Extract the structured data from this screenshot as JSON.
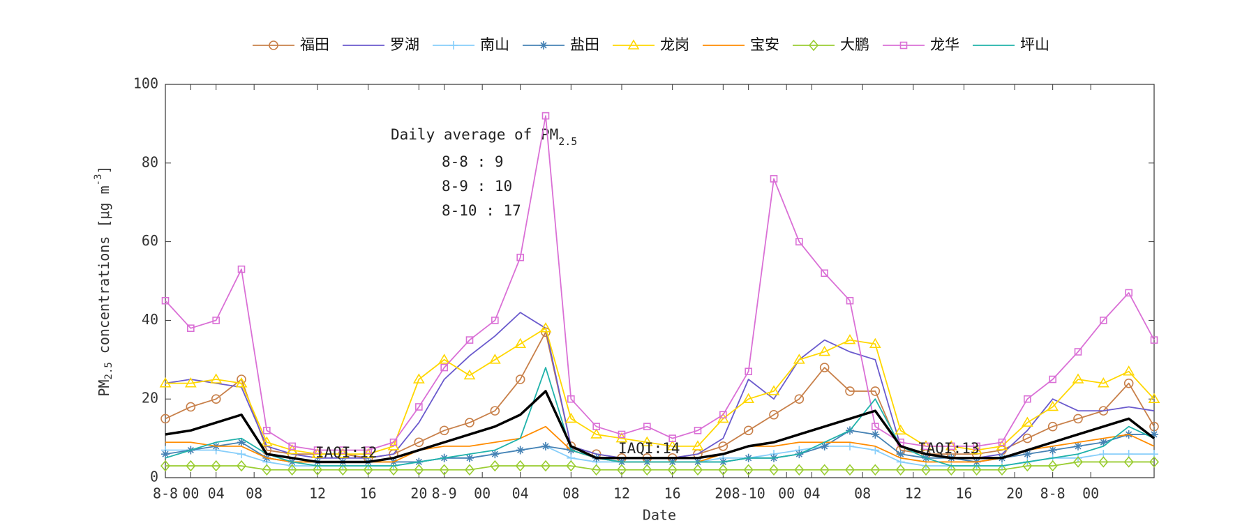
{
  "chart_data": {
    "type": "line",
    "xlabel": "Date",
    "ylabel": [
      "PM",
      "2.5",
      " concentrations [μg m",
      "-3",
      "]"
    ],
    "annotation": {
      "title": [
        "Daily average of PM",
        "2.5"
      ],
      "lines": [
        "8-8 : 9",
        "8-9 : 10",
        "8-10 : 17"
      ]
    },
    "iaqi": [
      "IAQI:12",
      "IAQI:14",
      "IAQI:13"
    ],
    "x": [
      0,
      2,
      4,
      6,
      8,
      10,
      12,
      14,
      16,
      18,
      20,
      22,
      24,
      26,
      28,
      30,
      32,
      34,
      36,
      38,
      40,
      42,
      44,
      46,
      48,
      50,
      52,
      54,
      56,
      58,
      60,
      62,
      64,
      66,
      68,
      70,
      72,
      74,
      76,
      78
    ],
    "xlim": [
      0,
      78
    ],
    "xticks": [
      {
        "value": 0,
        "label": "8-8"
      },
      {
        "value": 2,
        "label": "00"
      },
      {
        "value": 4,
        "label": "04"
      },
      {
        "value": 7,
        "label": "08"
      },
      {
        "value": 12,
        "label": "12"
      },
      {
        "value": 16,
        "label": "16"
      },
      {
        "value": 20,
        "label": "20"
      },
      {
        "value": 22,
        "label": "8-9"
      },
      {
        "value": 25,
        "label": "00"
      },
      {
        "value": 28,
        "label": "04"
      },
      {
        "value": 32,
        "label": "08"
      },
      {
        "value": 36,
        "label": "12"
      },
      {
        "value": 40,
        "label": "16"
      },
      {
        "value": 44,
        "label": "20"
      },
      {
        "value": 46,
        "label": "8-10"
      },
      {
        "value": 49,
        "label": "00"
      },
      {
        "value": 51,
        "label": "04"
      },
      {
        "value": 55,
        "label": "08"
      },
      {
        "value": 59,
        "label": "12"
      },
      {
        "value": 63,
        "label": "16"
      },
      {
        "value": 67,
        "label": "20"
      },
      {
        "value": 70,
        "label": "8-8"
      },
      {
        "value": 73,
        "label": "00"
      }
    ],
    "ylim": [
      0,
      100
    ],
    "yticks": [
      0,
      20,
      40,
      60,
      80,
      100
    ],
    "series": [
      {
        "name": "福田",
        "color": "#c8804a",
        "marker": "circle",
        "values": [
          15,
          18,
          20,
          25,
          7,
          6,
          6,
          6,
          5,
          6,
          9,
          12,
          14,
          17,
          25,
          37,
          8,
          6,
          5,
          5,
          5,
          6,
          8,
          12,
          16,
          20,
          28,
          22,
          22,
          7,
          6,
          6,
          6,
          7,
          10,
          13,
          15,
          17,
          24,
          13
        ]
      },
      {
        "name": "罗湖",
        "color": "#6a5acd",
        "marker": "none",
        "values": [
          24,
          25,
          24,
          23,
          8,
          6,
          5,
          5,
          5,
          6,
          14,
          25,
          31,
          36,
          42,
          38,
          8,
          6,
          5,
          5,
          5,
          6,
          10,
          25,
          20,
          30,
          35,
          32,
          30,
          8,
          6,
          5,
          5,
          6,
          12,
          20,
          17,
          17,
          18,
          17
        ]
      },
      {
        "name": "南山",
        "color": "#87cefa",
        "marker": "plus",
        "values": [
          7,
          7,
          7,
          6,
          4,
          3,
          3,
          3,
          3,
          3,
          4,
          5,
          5,
          6,
          7,
          8,
          5,
          4,
          4,
          4,
          4,
          4,
          5,
          5,
          6,
          7,
          8,
          8,
          7,
          4,
          3,
          3,
          3,
          3,
          4,
          5,
          5,
          6,
          6,
          6
        ]
      },
      {
        "name": "盐田",
        "color": "#4682b4",
        "marker": "star",
        "values": [
          6,
          7,
          8,
          9,
          5,
          4,
          4,
          4,
          4,
          4,
          4,
          5,
          5,
          6,
          7,
          8,
          7,
          5,
          4,
          4,
          4,
          4,
          4,
          5,
          5,
          6,
          8,
          12,
          11,
          6,
          5,
          5,
          4,
          5,
          6,
          7,
          8,
          9,
          11,
          11
        ]
      },
      {
        "name": "龙岗",
        "color": "#ffd700",
        "marker": "triangle",
        "values": [
          24,
          24,
          25,
          24,
          9,
          7,
          6,
          6,
          6,
          8,
          25,
          30,
          26,
          30,
          34,
          38,
          15,
          11,
          10,
          9,
          8,
          8,
          15,
          20,
          22,
          30,
          32,
          35,
          34,
          12,
          8,
          8,
          7,
          8,
          14,
          18,
          25,
          24,
          27,
          20
        ]
      },
      {
        "name": "宝安",
        "color": "#ff8c00",
        "marker": "none",
        "values": [
          9,
          9,
          8,
          8,
          5,
          4,
          4,
          4,
          4,
          4,
          7,
          8,
          8,
          9,
          10,
          13,
          7,
          5,
          4,
          4,
          4,
          4,
          6,
          8,
          8,
          9,
          9,
          9,
          8,
          5,
          4,
          4,
          4,
          5,
          7,
          8,
          9,
          10,
          11,
          8
        ]
      },
      {
        "name": "大鹏",
        "color": "#9acd32",
        "marker": "diamond",
        "values": [
          3,
          3,
          3,
          3,
          2,
          2,
          2,
          2,
          2,
          2,
          2,
          2,
          2,
          3,
          3,
          3,
          3,
          2,
          2,
          2,
          2,
          2,
          2,
          2,
          2,
          2,
          2,
          2,
          2,
          2,
          2,
          2,
          2,
          2,
          3,
          3,
          4,
          4,
          4,
          4
        ]
      },
      {
        "name": "龙华",
        "color": "#da70d6",
        "marker": "square",
        "values": [
          45,
          38,
          40,
          53,
          12,
          8,
          7,
          7,
          7,
          9,
          18,
          28,
          35,
          40,
          56,
          92,
          20,
          13,
          11,
          13,
          10,
          12,
          16,
          27,
          76,
          60,
          52,
          45,
          13,
          9,
          8,
          8,
          8,
          9,
          20,
          25,
          32,
          40,
          47,
          35
        ]
      },
      {
        "name": "坪山",
        "color": "#20b2aa",
        "marker": "none",
        "values": [
          5,
          7,
          9,
          10,
          6,
          4,
          3,
          3,
          3,
          3,
          4,
          5,
          6,
          7,
          10,
          28,
          7,
          5,
          4,
          4,
          4,
          4,
          4,
          5,
          5,
          6,
          9,
          12,
          20,
          8,
          5,
          3,
          3,
          3,
          4,
          5,
          6,
          8,
          13,
          10
        ]
      },
      {
        "color": "#000000",
        "width": 3.5,
        "marker": "none",
        "values": [
          11,
          12,
          14,
          16,
          6,
          5,
          4,
          4,
          4,
          5,
          7,
          9,
          11,
          13,
          16,
          22,
          8,
          5,
          5,
          5,
          5,
          5,
          6,
          8,
          9,
          11,
          13,
          15,
          17,
          8,
          6,
          5,
          5,
          5,
          7,
          9,
          11,
          13,
          15,
          10
        ]
      }
    ]
  }
}
